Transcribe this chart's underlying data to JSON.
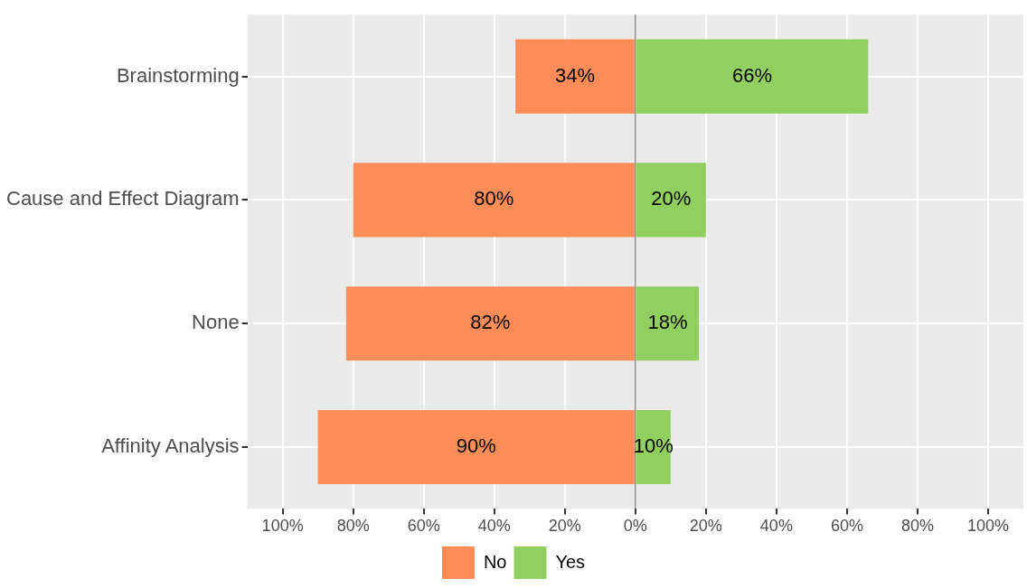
{
  "chart_data": {
    "type": "bar",
    "orientation": "horizontal",
    "categories": [
      "Brainstorming",
      "Cause and Effect Diagram",
      "None",
      "Affinity Analysis"
    ],
    "series": [
      {
        "name": "No",
        "color": "#fc8d59",
        "values": [
          34,
          80,
          82,
          90
        ],
        "base": [
          -34,
          -80,
          -82,
          -90
        ],
        "value_labels": [
          "34%",
          "80%",
          "82%",
          "90%"
        ]
      },
      {
        "name": "Yes",
        "color": "#91cf60",
        "values": [
          66,
          20,
          18,
          10
        ],
        "value_labels": [
          "66%",
          "20%",
          "18%",
          "10%"
        ]
      }
    ],
    "xlim": [
      -110,
      110
    ],
    "xticks": [
      {
        "value": -100,
        "label": "100%"
      },
      {
        "value": -80,
        "label": "80%"
      },
      {
        "value": -60,
        "label": "60%"
      },
      {
        "value": -40,
        "label": "40%"
      },
      {
        "value": -20,
        "label": "20%"
      },
      {
        "value": 0,
        "label": "0%"
      },
      {
        "value": 20,
        "label": "20%"
      },
      {
        "value": 40,
        "label": "40%"
      },
      {
        "value": 60,
        "label": "60%"
      },
      {
        "value": 80,
        "label": "80%"
      },
      {
        "value": 100,
        "label": "100%"
      }
    ],
    "ref_lines": [
      {
        "axis": "x",
        "value": 0,
        "color": "#555555"
      }
    ],
    "grid": true,
    "legend": "bottom"
  }
}
